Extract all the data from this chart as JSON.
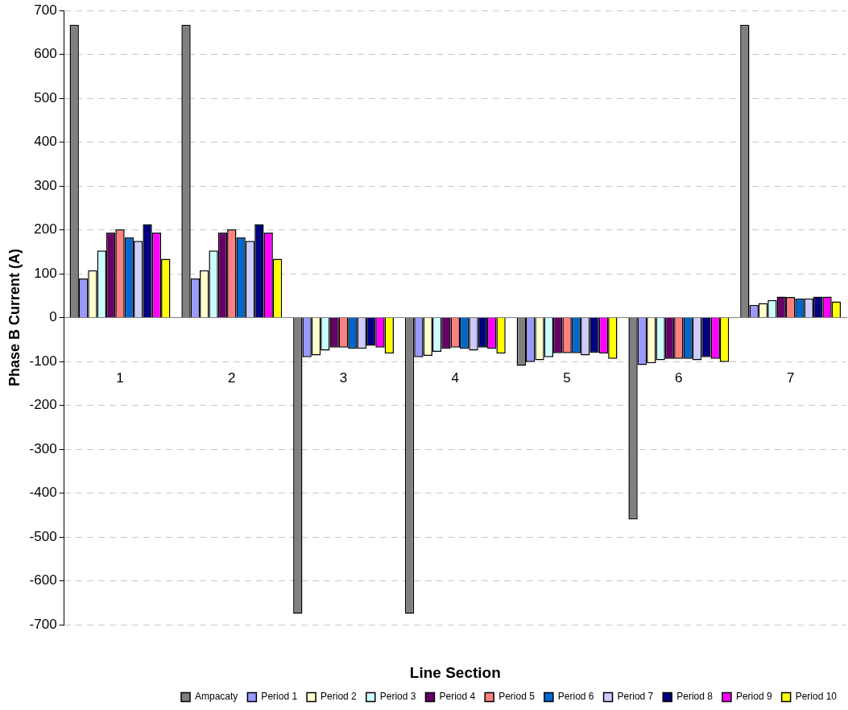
{
  "chart_data": {
    "type": "bar",
    "xlabel": "Line Section",
    "ylabel": "Phase B Current (A)",
    "categories": [
      "1",
      "2",
      "3",
      "4",
      "5",
      "6",
      "7"
    ],
    "series": [
      {
        "name": "Ampacaty",
        "color": "#808080",
        "values": [
          668,
          668,
          -675,
          -675,
          -110,
          -460,
          668
        ]
      },
      {
        "name": "Period 1",
        "color": "#9999ff",
        "values": [
          89,
          89,
          -90,
          -90,
          -101,
          -108,
          29
        ]
      },
      {
        "name": "Period 2",
        "color": "#ffffcc",
        "values": [
          108,
          108,
          -86,
          -87,
          -97,
          -104,
          33
        ]
      },
      {
        "name": "Period 3",
        "color": "#ccffff",
        "values": [
          153,
          153,
          -75,
          -78,
          -90,
          -97,
          40
        ]
      },
      {
        "name": "Period 4",
        "color": "#660066",
        "values": [
          194,
          194,
          -68,
          -71,
          -81,
          -94,
          48
        ]
      },
      {
        "name": "Period 5",
        "color": "#ff8080",
        "values": [
          201,
          201,
          -68,
          -68,
          -81,
          -94,
          47
        ]
      },
      {
        "name": "Period 6",
        "color": "#0066cc",
        "values": [
          183,
          183,
          -71,
          -71,
          -81,
          -94,
          44
        ]
      },
      {
        "name": "Period 7",
        "color": "#ccccff",
        "values": [
          175,
          175,
          -71,
          -75,
          -86,
          -97,
          44
        ]
      },
      {
        "name": "Period 8",
        "color": "#000080",
        "values": [
          213,
          213,
          -64,
          -68,
          -80,
          -90,
          48
        ]
      },
      {
        "name": "Period 9",
        "color": "#ff00ff",
        "values": [
          194,
          194,
          -68,
          -71,
          -82,
          -94,
          48
        ]
      },
      {
        "name": "Period 10",
        "color": "#ffff00",
        "values": [
          134,
          134,
          -82,
          -82,
          -94,
          -101,
          37
        ]
      }
    ],
    "ylim": [
      -700,
      700
    ],
    "yticks": [
      -700,
      -600,
      -500,
      -400,
      -300,
      -200,
      -100,
      0,
      100,
      200,
      300,
      400,
      500,
      600,
      700
    ],
    "grid": "y",
    "legend": "bottom"
  }
}
